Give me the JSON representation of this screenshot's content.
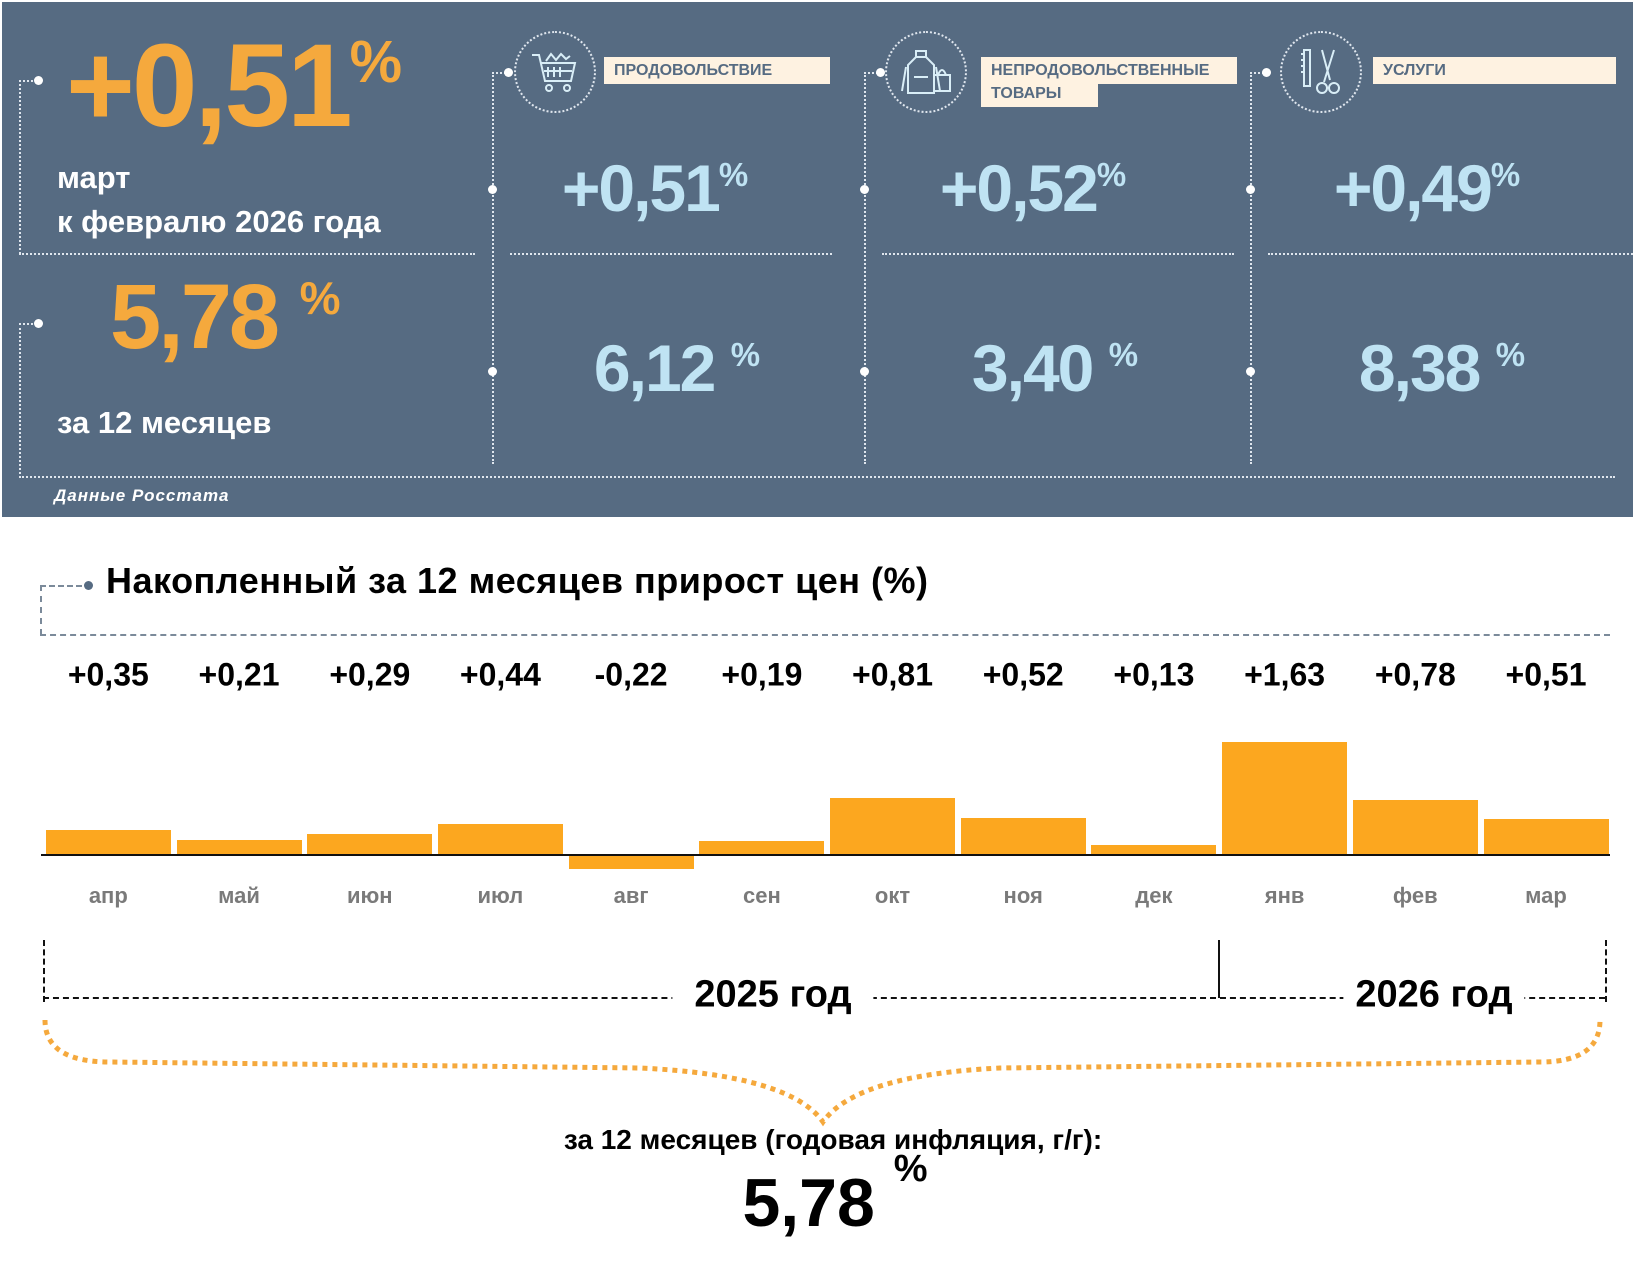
{
  "summary": {
    "monthly_value": "+0,51",
    "percent": "%",
    "monthly_caption_line1": "март",
    "monthly_caption_line2": "к февралю 2026 года",
    "annual_value": "5,78",
    "annual_caption": "за 12 месяцев",
    "source": "Данные Росстата"
  },
  "categories": [
    {
      "name": "ПРОДОВОЛЬСТВИЕ",
      "name2": "",
      "icon": "shopping-cart-icon",
      "monthly": "+0,51",
      "annual": "6,12"
    },
    {
      "name": "НЕПРОДОВОЛЬСТВЕННЫЕ",
      "name2": "ТОВАРЫ",
      "icon": "clothes-bag-icon",
      "monthly": "+0,52",
      "annual": "3,40"
    },
    {
      "name": "УСЛУГИ",
      "name2": "",
      "icon": "comb-scissors-icon",
      "monthly": "+0,49",
      "annual": "8,38"
    }
  ],
  "chart_data": {
    "type": "bar",
    "title": "Накопленный за 12 месяцев прирост цен (%)",
    "categories": [
      "апр",
      "май",
      "июн",
      "июл",
      "авг",
      "сен",
      "окт",
      "ноя",
      "дек",
      "янв",
      "фев",
      "мар"
    ],
    "values": [
      0.35,
      0.21,
      0.29,
      0.44,
      -0.22,
      0.19,
      0.81,
      0.52,
      0.13,
      1.63,
      0.78,
      0.51
    ],
    "value_labels": [
      "+0,35",
      "+0,21",
      "+0,29",
      "+0,44",
      "-0,22",
      "+0,19",
      "+0,81",
      "+0,52",
      "+0,13",
      "+1,63",
      "+0,78",
      "+0,51"
    ],
    "years": [
      "2025 год",
      "2026 год"
    ],
    "bar_color": "#fca71f",
    "xlabel": "",
    "ylabel": ""
  },
  "footer": {
    "caption": "за 12 месяцев (годовая инфляция, г/г):",
    "value": "5,78",
    "percent": "%"
  }
}
